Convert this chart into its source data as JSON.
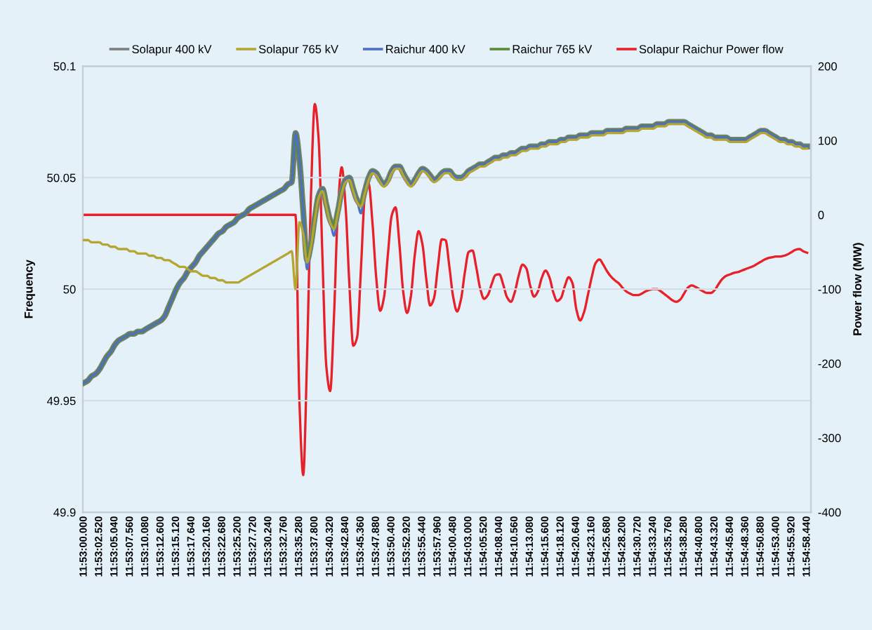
{
  "chart_data": {
    "type": "line",
    "ylabel": "Frequency",
    "y2label": "Power flow (MW)",
    "ylim": [
      49.9,
      50.1
    ],
    "yticks": [
      49.9,
      49.95,
      50,
      50.05,
      50.1
    ],
    "y2lim": [
      -400,
      200
    ],
    "y2ticks": [
      -400,
      -300,
      -200,
      -100,
      0,
      100,
      200
    ],
    "categories": [
      "11:53:00.000",
      null,
      null,
      null,
      "11:53:02.520",
      null,
      null,
      null,
      "11:53:05.040",
      null,
      null,
      null,
      "11:53:07.560",
      null,
      null,
      null,
      "11:53:10.080",
      null,
      null,
      null,
      "11:53:12.600",
      null,
      null,
      null,
      "11:53:15.120",
      null,
      null,
      null,
      "11:53:17.640",
      null,
      null,
      null,
      "11:53:20.160",
      null,
      null,
      null,
      "11:53:22.680",
      null,
      null,
      null,
      "11:53:25.200",
      null,
      null,
      null,
      "11:53:27.720",
      null,
      null,
      null,
      "11:53:30.240",
      null,
      null,
      null,
      "11:53:32.760",
      null,
      null,
      null,
      "11:53:35.280",
      null,
      null,
      null,
      "11:53:37.800",
      null,
      null,
      null,
      "11:53:40.320",
      null,
      null,
      null,
      "11:53:42.840",
      null,
      null,
      null,
      "11:53:45.360",
      null,
      null,
      null,
      "11:53:47.880",
      null,
      null,
      null,
      "11:53:50.400",
      null,
      null,
      null,
      "11:53:52.920",
      null,
      null,
      null,
      "11:53:55.440",
      null,
      null,
      null,
      "11:53:57.960",
      null,
      null,
      null,
      "11:54:00.480",
      null,
      null,
      null,
      "11:54:03.000",
      null,
      null,
      null,
      "11:54:05.520",
      null,
      null,
      null,
      "11:54:08.040",
      null,
      null,
      null,
      "11:54:10.560",
      null,
      null,
      null,
      "11:54:13.080",
      null,
      null,
      null,
      "11:54:15.600",
      null,
      null,
      null,
      "11:54:18.120",
      null,
      null,
      null,
      "11:54:20.640",
      null,
      null,
      null,
      "11:54:23.160",
      null,
      null,
      null,
      "11:54:25.680",
      null,
      null,
      null,
      "11:54:28.200",
      null,
      null,
      null,
      "11:54:30.720",
      null,
      null,
      null,
      "11:54:33.240",
      null,
      null,
      null,
      "11:54:35.760",
      null,
      null,
      null,
      "11:54:38.280",
      null,
      null,
      null,
      "11:54:40.800",
      null,
      null,
      null,
      "11:54:43.320",
      null,
      null,
      null,
      "11:54:45.840",
      null,
      null,
      null,
      "11:54:48.360",
      null,
      null,
      null,
      "11:54:50.880",
      null,
      null,
      null,
      "11:54:53.400",
      null,
      null,
      null,
      "11:54:55.920",
      null,
      null,
      null,
      "11:54:58.440"
    ],
    "grid": "y",
    "legend": "top",
    "marker": "none",
    "line_style": "solid",
    "series": [
      {
        "name": "Solapur 400 kV",
        "color": "#7f7f7f",
        "values": [
          49.958,
          49.959,
          49.961,
          49.962,
          49.964,
          49.967,
          49.97,
          49.972,
          49.975,
          49.977,
          49.978,
          49.979,
          49.98,
          49.98,
          49.981,
          49.981,
          49.982,
          49.983,
          49.984,
          49.985,
          49.986,
          49.988,
          49.992,
          49.996,
          50.0,
          50.003,
          50.005,
          50.008,
          50.01,
          50.012,
          50.015,
          50.017,
          50.019,
          50.021,
          50.023,
          50.025,
          50.026,
          50.028,
          50.029,
          50.03,
          50.032,
          50.033,
          50.034,
          50.036,
          50.037,
          50.038,
          50.039,
          50.04,
          50.041,
          50.042,
          50.043,
          50.044,
          50.045,
          50.047,
          50.048,
          50.07,
          50.058,
          50.035,
          50.013,
          50.02,
          50.032,
          50.042,
          50.045,
          50.038,
          50.031,
          50.028,
          50.035,
          50.044,
          50.049,
          50.05,
          50.045,
          50.04,
          50.038,
          50.044,
          50.05,
          50.053,
          50.052,
          50.049,
          50.047,
          50.049,
          50.053,
          50.055,
          50.055,
          50.052,
          50.049,
          50.047,
          50.049,
          50.052,
          50.054,
          50.053,
          50.051,
          50.049,
          50.05,
          50.052,
          50.053,
          50.053,
          50.051,
          50.05,
          50.05,
          50.051,
          50.053,
          50.054,
          50.055,
          50.056,
          50.056,
          50.057,
          50.058,
          50.059,
          50.059,
          50.06,
          50.06,
          50.061,
          50.061,
          50.062,
          50.063,
          50.063,
          50.064,
          50.064,
          50.064,
          50.065,
          50.065,
          50.066,
          50.066,
          50.066,
          50.067,
          50.067,
          50.068,
          50.068,
          50.068,
          50.069,
          50.069,
          50.069,
          50.07,
          50.07,
          50.07,
          50.07,
          50.071,
          50.071,
          50.071,
          50.071,
          50.071,
          50.072,
          50.072,
          50.072,
          50.072,
          50.073,
          50.073,
          50.073,
          50.073,
          50.074,
          50.074,
          50.074,
          50.075,
          50.075,
          50.075,
          50.075,
          50.075,
          50.074,
          50.073,
          50.072,
          50.071,
          50.07,
          50.069,
          50.069,
          50.068,
          50.068,
          50.068,
          50.068,
          50.067,
          50.067,
          50.067,
          50.067,
          50.067,
          50.068,
          50.069,
          50.07,
          50.071,
          50.071,
          50.07,
          50.069,
          50.068,
          50.067,
          50.067,
          50.066,
          50.066,
          50.065,
          50.065,
          50.064,
          50.064
        ]
      },
      {
        "name": "Solapur 765 kV",
        "color": "#b5a632",
        "values": [
          50.022,
          50.022,
          50.021,
          50.021,
          50.021,
          50.02,
          50.02,
          50.019,
          50.019,
          50.018,
          50.018,
          50.018,
          50.017,
          50.017,
          50.016,
          50.016,
          50.016,
          50.015,
          50.015,
          50.014,
          50.014,
          50.013,
          50.013,
          50.012,
          50.011,
          50.01,
          50.01,
          50.009,
          50.008,
          50.008,
          50.007,
          50.006,
          50.006,
          50.005,
          50.005,
          50.004,
          50.004,
          50.003,
          50.003,
          50.003,
          50.003,
          50.004,
          50.005,
          50.006,
          50.007,
          50.008,
          50.009,
          50.01,
          50.011,
          50.012,
          50.013,
          50.014,
          50.015,
          50.016,
          50.017,
          50.0,
          50.03,
          50.025,
          50.012,
          50.019,
          50.031,
          50.041,
          50.044,
          50.037,
          50.03,
          50.027,
          50.034,
          50.043,
          50.048,
          50.049,
          50.044,
          50.039,
          50.037,
          50.043,
          50.049,
          50.052,
          50.051,
          50.048,
          50.046,
          50.048,
          50.052,
          50.054,
          50.054,
          50.051,
          50.048,
          50.046,
          50.048,
          50.051,
          50.053,
          50.052,
          50.05,
          50.048,
          50.049,
          50.051,
          50.052,
          50.052,
          50.05,
          50.049,
          50.049,
          50.05,
          50.052,
          50.053,
          50.054,
          50.055,
          50.055,
          50.056,
          50.057,
          50.058,
          50.058,
          50.059,
          50.059,
          50.06,
          50.06,
          50.061,
          50.062,
          50.062,
          50.063,
          50.063,
          50.063,
          50.064,
          50.064,
          50.065,
          50.065,
          50.065,
          50.066,
          50.066,
          50.067,
          50.067,
          50.067,
          50.068,
          50.068,
          50.068,
          50.069,
          50.069,
          50.069,
          50.069,
          50.07,
          50.07,
          50.07,
          50.07,
          50.07,
          50.071,
          50.071,
          50.071,
          50.071,
          50.072,
          50.072,
          50.072,
          50.072,
          50.073,
          50.073,
          50.073,
          50.074,
          50.074,
          50.074,
          50.074,
          50.074,
          50.073,
          50.072,
          50.071,
          50.07,
          50.069,
          50.068,
          50.068,
          50.067,
          50.067,
          50.067,
          50.067,
          50.066,
          50.066,
          50.066,
          50.066,
          50.066,
          50.067,
          50.068,
          50.069,
          50.07,
          50.07,
          50.069,
          50.068,
          50.067,
          50.066,
          50.066,
          50.065,
          50.065,
          50.064,
          50.064,
          50.063,
          50.063
        ]
      },
      {
        "name": "Raichur 400 kV",
        "color": "#4f6fbf",
        "values": [
          49.958,
          49.959,
          49.961,
          49.962,
          49.964,
          49.967,
          49.97,
          49.972,
          49.975,
          49.977,
          49.978,
          49.979,
          49.98,
          49.98,
          49.981,
          49.981,
          49.982,
          49.983,
          49.984,
          49.985,
          49.986,
          49.988,
          49.992,
          49.996,
          50.0,
          50.003,
          50.005,
          50.008,
          50.01,
          50.012,
          50.015,
          50.017,
          50.019,
          50.021,
          50.023,
          50.025,
          50.026,
          50.028,
          50.029,
          50.03,
          50.032,
          50.033,
          50.034,
          50.036,
          50.037,
          50.038,
          50.039,
          50.04,
          50.041,
          50.042,
          50.043,
          50.044,
          50.045,
          50.047,
          50.048,
          50.07,
          50.058,
          50.035,
          50.009,
          50.02,
          50.032,
          50.042,
          50.045,
          50.038,
          50.031,
          50.024,
          50.035,
          50.044,
          50.049,
          50.05,
          50.045,
          50.04,
          50.034,
          50.044,
          50.05,
          50.053,
          50.052,
          50.049,
          50.047,
          50.049,
          50.053,
          50.055,
          50.055,
          50.052,
          50.049,
          50.047,
          50.049,
          50.052,
          50.054,
          50.053,
          50.051,
          50.049,
          50.05,
          50.052,
          50.053,
          50.053,
          50.051,
          50.05,
          50.05,
          50.051,
          50.053,
          50.054,
          50.055,
          50.056,
          50.056,
          50.057,
          50.058,
          50.059,
          50.059,
          50.06,
          50.06,
          50.061,
          50.061,
          50.062,
          50.063,
          50.063,
          50.064,
          50.064,
          50.064,
          50.065,
          50.065,
          50.066,
          50.066,
          50.066,
          50.067,
          50.067,
          50.068,
          50.068,
          50.068,
          50.069,
          50.069,
          50.069,
          50.07,
          50.07,
          50.07,
          50.07,
          50.071,
          50.071,
          50.071,
          50.071,
          50.071,
          50.072,
          50.072,
          50.072,
          50.072,
          50.073,
          50.073,
          50.073,
          50.073,
          50.074,
          50.074,
          50.074,
          50.075,
          50.075,
          50.075,
          50.075,
          50.075,
          50.074,
          50.073,
          50.072,
          50.071,
          50.07,
          50.069,
          50.069,
          50.068,
          50.068,
          50.068,
          50.068,
          50.067,
          50.067,
          50.067,
          50.067,
          50.067,
          50.068,
          50.069,
          50.07,
          50.071,
          50.071,
          50.07,
          50.069,
          50.068,
          50.067,
          50.067,
          50.066,
          50.066,
          50.065,
          50.065,
          50.064,
          50.064
        ]
      },
      {
        "name": "Raichur 765 kV",
        "color": "#5a8a3a",
        "values": [
          49.958,
          49.959,
          49.961,
          49.962,
          49.964,
          49.967,
          49.97,
          49.972,
          49.975,
          49.977,
          49.978,
          49.979,
          49.98,
          49.98,
          49.981,
          49.981,
          49.982,
          49.983,
          49.984,
          49.985,
          49.986,
          49.988,
          49.992,
          49.996,
          50.0,
          50.003,
          50.005,
          50.008,
          50.01,
          50.012,
          50.015,
          50.017,
          50.019,
          50.021,
          50.023,
          50.025,
          50.026,
          50.028,
          50.029,
          50.03,
          50.032,
          50.033,
          50.034,
          50.036,
          50.037,
          50.038,
          50.039,
          50.04,
          50.041,
          50.042,
          50.043,
          50.044,
          50.045,
          50.047,
          50.048,
          50.07,
          50.058,
          50.035,
          50.013,
          50.02,
          50.032,
          50.042,
          50.045,
          50.038,
          50.031,
          50.028,
          50.035,
          50.044,
          50.049,
          50.05,
          50.045,
          50.04,
          50.038,
          50.044,
          50.05,
          50.053,
          50.052,
          50.049,
          50.047,
          50.049,
          50.053,
          50.055,
          50.055,
          50.052,
          50.049,
          50.047,
          50.049,
          50.052,
          50.054,
          50.053,
          50.051,
          50.049,
          50.05,
          50.052,
          50.053,
          50.053,
          50.051,
          50.05,
          50.05,
          50.051,
          50.053,
          50.054,
          50.055,
          50.056,
          50.056,
          50.057,
          50.058,
          50.059,
          50.059,
          50.06,
          50.06,
          50.061,
          50.061,
          50.062,
          50.063,
          50.063,
          50.064,
          50.064,
          50.064,
          50.065,
          50.065,
          50.066,
          50.066,
          50.066,
          50.067,
          50.067,
          50.068,
          50.068,
          50.068,
          50.069,
          50.069,
          50.069,
          50.07,
          50.07,
          50.07,
          50.07,
          50.071,
          50.071,
          50.071,
          50.071,
          50.071,
          50.072,
          50.072,
          50.072,
          50.072,
          50.073,
          50.073,
          50.073,
          50.073,
          50.074,
          50.074,
          50.074,
          50.075,
          50.075,
          50.075,
          50.075,
          50.075,
          50.074,
          50.073,
          50.072,
          50.071,
          50.07,
          50.069,
          50.069,
          50.068,
          50.068,
          50.068,
          50.068,
          50.067,
          50.067,
          50.067,
          50.067,
          50.067,
          50.068,
          50.069,
          50.07,
          50.071,
          50.071,
          50.07,
          50.069,
          50.068,
          50.067,
          50.067,
          50.066,
          50.066,
          50.065,
          50.065,
          50.064,
          50.064
        ]
      },
      {
        "name": "Solapur Raichur Power flow",
        "color": "#e8202a",
        "axis": "y2",
        "values": [
          0,
          0,
          0,
          0,
          0,
          0,
          0,
          0,
          0,
          0,
          0,
          0,
          0,
          0,
          0,
          0,
          0,
          0,
          0,
          0,
          0,
          0,
          0,
          0,
          0,
          0,
          0,
          0,
          0,
          0,
          0,
          0,
          0,
          0,
          0,
          0,
          0,
          0,
          0,
          0,
          0,
          0,
          0,
          0,
          0,
          0,
          0,
          0,
          0,
          0,
          0,
          0,
          0,
          0,
          0,
          0,
          -250,
          -350,
          -189,
          24,
          149,
          102,
          -58,
          -204,
          -237,
          -136,
          6,
          64,
          12,
          -94,
          -176,
          -165,
          -73,
          24,
          42,
          -11,
          -86,
          -129,
          -111,
          -54,
          -1,
          10,
          -39,
          -104,
          -132,
          -109,
          -54,
          -22,
          -40,
          -87,
          -122,
          -112,
          -70,
          -33,
          -34,
          -70,
          -111,
          -130,
          -114,
          -78,
          -50,
          -48,
          -71,
          -99,
          -113,
          -108,
          -93,
          -81,
          -80,
          -94,
          -111,
          -117,
          -104,
          -82,
          -67,
          -72,
          -95,
          -110,
          -103,
          -85,
          -75,
          -84,
          -104,
          -116,
          -112,
          -96,
          -84,
          -92,
          -127,
          -142,
          -131,
          -108,
          -84,
          -65,
          -60,
          -67,
          -76,
          -83,
          -88,
          -92,
          -98,
          -103,
          -106,
          -108,
          -108,
          -106,
          -103,
          -101,
          -100,
          -100,
          -103,
          -107,
          -111,
          -115,
          -117,
          -114,
          -106,
          -98,
          -95,
          -97,
          -100,
          -103,
          -105,
          -105,
          -101,
          -93,
          -86,
          -82,
          -80,
          -78,
          -77,
          -75,
          -73,
          -71,
          -69,
          -66,
          -63,
          -60,
          -58,
          -57,
          -56,
          -56,
          -55,
          -53,
          -50,
          -47,
          -46,
          -49,
          -51
        ]
      }
    ]
  }
}
